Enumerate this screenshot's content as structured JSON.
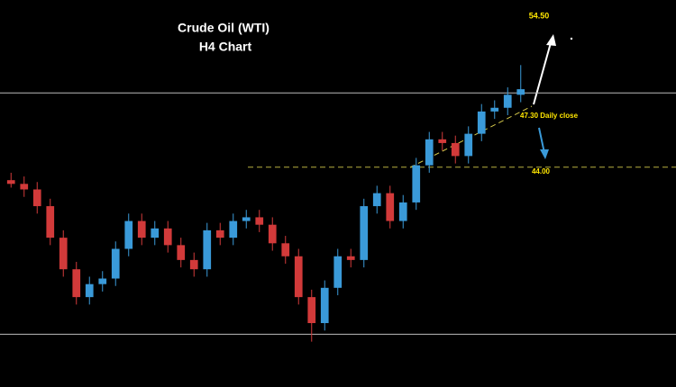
{
  "chart_data": {
    "type": "candlestick",
    "title": "Crude Oil (WTI)",
    "subtitle": "H4 Chart",
    "open": [
      43.3,
      43.1,
      42.8,
      41.9,
      40.2,
      38.5,
      37.0,
      37.7,
      38.0,
      39.6,
      41.1,
      40.2,
      40.7,
      39.8,
      39.0,
      38.5,
      40.6,
      40.2,
      41.1,
      41.3,
      40.9,
      39.9,
      39.2,
      37.0,
      35.6,
      37.5,
      39.2,
      39.0,
      41.9,
      42.6,
      41.1,
      42.1,
      44.1,
      45.5,
      45.3,
      44.6,
      45.8,
      47.0,
      47.2,
      47.9
    ],
    "high": [
      43.7,
      43.5,
      43.2,
      42.3,
      40.6,
      38.9,
      38.1,
      38.4,
      40.0,
      41.5,
      41.5,
      41.1,
      41.1,
      40.2,
      39.4,
      41.0,
      41.0,
      41.5,
      41.7,
      41.7,
      41.3,
      40.3,
      39.6,
      37.4,
      37.9,
      39.6,
      39.6,
      42.3,
      43.0,
      43.0,
      42.5,
      44.5,
      45.9,
      45.9,
      45.7,
      46.2,
      47.4,
      47.6,
      48.3,
      49.5
    ],
    "low": [
      42.9,
      42.4,
      41.5,
      39.8,
      38.1,
      36.6,
      36.6,
      37.3,
      37.6,
      39.2,
      39.8,
      39.8,
      39.4,
      38.6,
      38.1,
      38.1,
      39.8,
      39.8,
      40.7,
      40.5,
      39.5,
      38.8,
      36.6,
      34.6,
      35.2,
      37.1,
      38.6,
      38.6,
      41.5,
      40.7,
      40.7,
      41.7,
      43.7,
      44.9,
      44.2,
      44.2,
      45.4,
      46.6,
      46.8,
      47.5
    ],
    "close": [
      43.1,
      42.8,
      41.9,
      40.2,
      38.5,
      37.0,
      37.7,
      38.0,
      39.6,
      41.1,
      40.2,
      40.7,
      39.8,
      39.0,
      38.5,
      40.6,
      40.2,
      41.1,
      41.3,
      40.9,
      39.9,
      39.2,
      37.0,
      35.6,
      37.5,
      39.2,
      39.0,
      41.9,
      42.6,
      41.1,
      42.1,
      44.1,
      45.5,
      45.3,
      44.6,
      45.8,
      47.0,
      47.2,
      47.9,
      48.2
    ],
    "ylim": [
      34,
      50
    ],
    "up_color": "#3a9ad9",
    "down_color": "#d23a3a",
    "levels": [
      48,
      35
    ],
    "support": {
      "value": 44,
      "label": "44.00"
    },
    "daily_close": {
      "value": 47.3,
      "label": "47.30 Daily close"
    },
    "target": {
      "value": 54.5,
      "label": "54.50"
    }
  }
}
